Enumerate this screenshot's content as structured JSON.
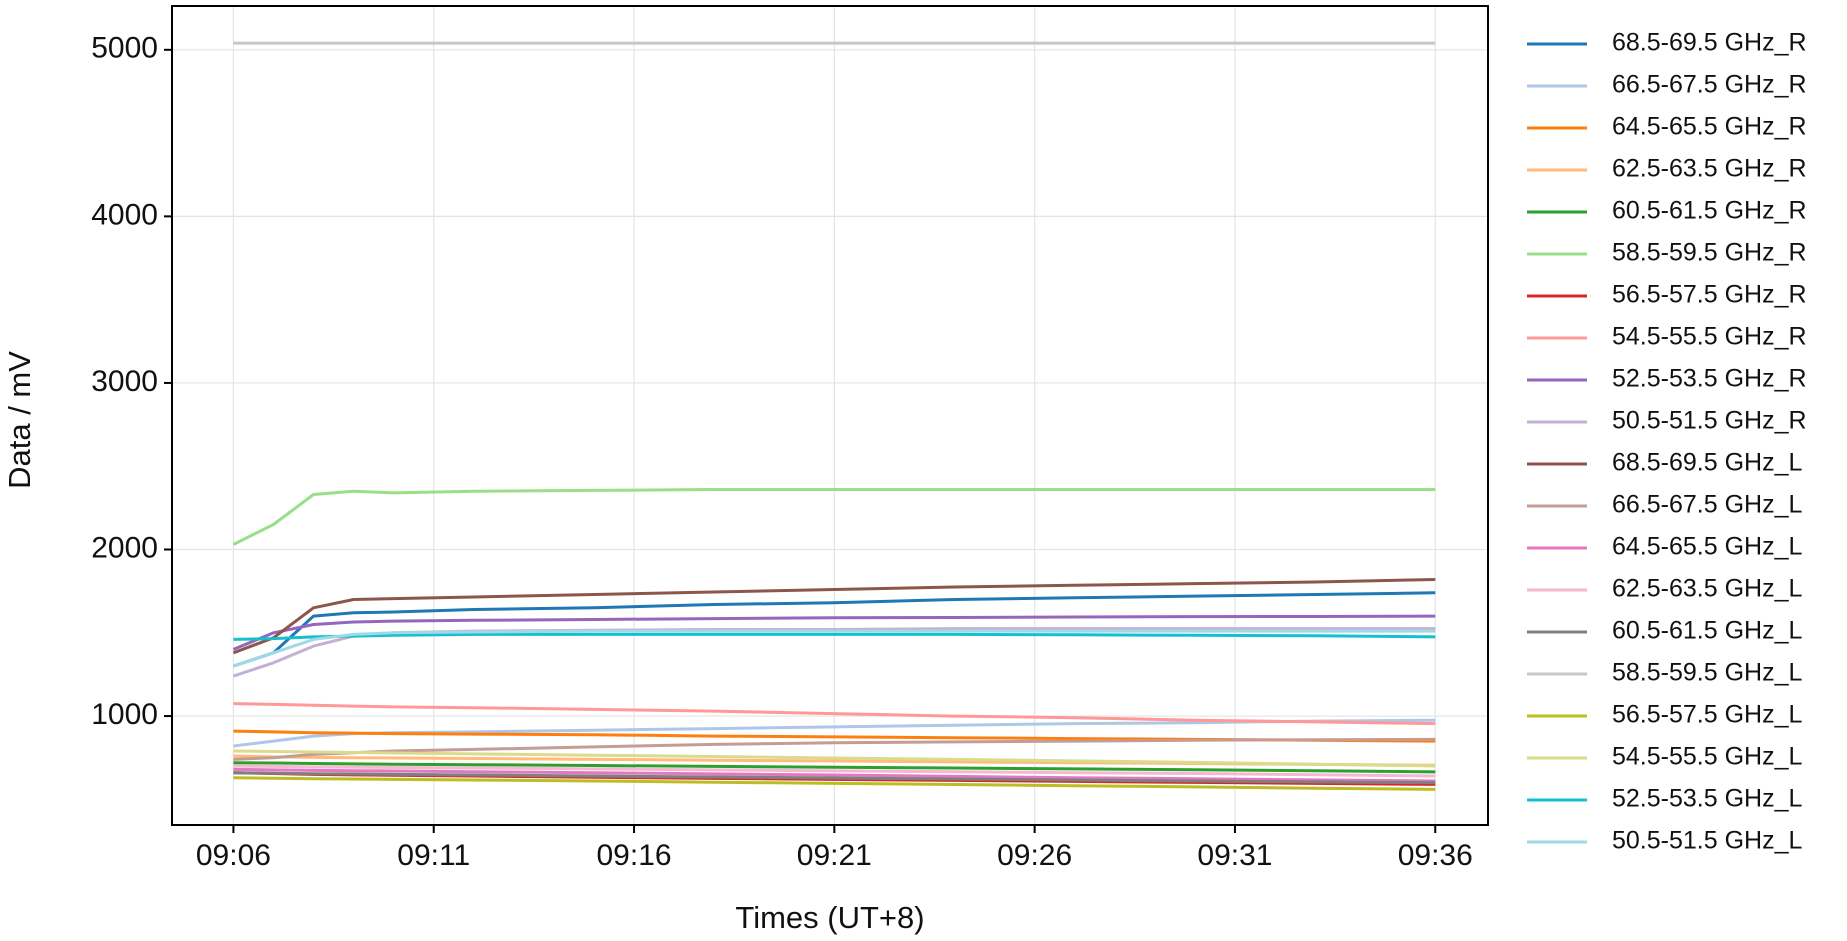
{
  "chart_data": {
    "type": "line",
    "xlabel": "Times (UT+8)",
    "ylabel": "Data / mV",
    "x": [
      "09:06",
      "09:07",
      "09:08",
      "09:09",
      "09:10",
      "09:12",
      "09:15",
      "09:18",
      "09:21",
      "09:24",
      "09:27",
      "09:30",
      "09:33",
      "09:36"
    ],
    "xlim": [
      "09:04:28",
      "09:37:19"
    ],
    "xticks": [
      "09:06",
      "09:11",
      "09:16",
      "09:21",
      "09:26",
      "09:31",
      "09:36"
    ],
    "ylim": [
      346,
      5263
    ],
    "yticks": [
      1000,
      2000,
      3000,
      4000,
      5000
    ],
    "grid": true,
    "legend": "right outside",
    "series": [
      {
        "name": "68.5-69.5 GHz_R",
        "color": "#1f77b4",
        "values": [
          1300,
          1380,
          1600,
          1620,
          1625,
          1640,
          1650,
          1670,
          1680,
          1700,
          1710,
          1720,
          1730,
          1740
        ]
      },
      {
        "name": "66.5-67.5 GHz_R",
        "color": "#aec7e8",
        "values": [
          820,
          850,
          880,
          895,
          900,
          905,
          915,
          925,
          935,
          945,
          955,
          960,
          970,
          975
        ]
      },
      {
        "name": "64.5-65.5 GHz_R",
        "color": "#ff7f0e",
        "values": [
          910,
          905,
          900,
          898,
          895,
          892,
          888,
          880,
          875,
          870,
          865,
          860,
          855,
          850
        ]
      },
      {
        "name": "62.5-63.5 GHz_R",
        "color": "#ffbb78",
        "values": [
          760,
          755,
          752,
          750,
          748,
          745,
          740,
          735,
          730,
          725,
          720,
          715,
          710,
          705
        ]
      },
      {
        "name": "60.5-61.5 GHz_R",
        "color": "#2ca02c",
        "values": [
          720,
          718,
          715,
          713,
          711,
          708,
          703,
          698,
          693,
          688,
          683,
          678,
          672,
          665
        ]
      },
      {
        "name": "58.5-59.5 GHz_R",
        "color": "#98df8a",
        "values": [
          2030,
          2150,
          2330,
          2350,
          2340,
          2350,
          2355,
          2360,
          2360,
          2360,
          2360,
          2360,
          2360,
          2360
        ]
      },
      {
        "name": "56.5-57.5 GHz_R",
        "color": "#d62728",
        "values": [
          660,
          655,
          650,
          647,
          645,
          640,
          633,
          626,
          620,
          614,
          608,
          602,
          596,
          590
        ]
      },
      {
        "name": "54.5-55.5 GHz_R",
        "color": "#ff9896",
        "values": [
          1075,
          1070,
          1065,
          1060,
          1055,
          1050,
          1040,
          1030,
          1015,
          1000,
          990,
          975,
          965,
          955
        ]
      },
      {
        "name": "52.5-53.5 GHz_R",
        "color": "#9467bd",
        "values": [
          1400,
          1500,
          1550,
          1565,
          1570,
          1575,
          1580,
          1585,
          1590,
          1592,
          1595,
          1597,
          1598,
          1600
        ]
      },
      {
        "name": "50.5-51.5 GHz_R",
        "color": "#c5b0d5",
        "values": [
          1240,
          1320,
          1420,
          1480,
          1500,
          1510,
          1515,
          1520,
          1520,
          1525,
          1525,
          1525,
          1525,
          1525
        ]
      },
      {
        "name": "68.5-69.5 GHz_L",
        "color": "#8c564b",
        "values": [
          1380,
          1470,
          1650,
          1700,
          1705,
          1715,
          1730,
          1745,
          1760,
          1775,
          1785,
          1795,
          1805,
          1820
        ]
      },
      {
        "name": "66.5-67.5 GHz_L",
        "color": "#c49c94",
        "values": [
          740,
          750,
          770,
          780,
          790,
          800,
          815,
          830,
          840,
          845,
          850,
          855,
          858,
          860
        ]
      },
      {
        "name": "64.5-65.5 GHz_L",
        "color": "#e377c2",
        "values": [
          680,
          677,
          674,
          672,
          670,
          666,
          660,
          653,
          646,
          638,
          630,
          624,
          617,
          610
        ]
      },
      {
        "name": "62.5-63.5 GHz_L",
        "color": "#f7b6d2",
        "values": [
          700,
          698,
          695,
          693,
          691,
          688,
          683,
          677,
          671,
          666,
          660,
          655,
          648,
          640
        ]
      },
      {
        "name": "60.5-61.5 GHz_L",
        "color": "#7f7f7f",
        "values": [
          660,
          657,
          654,
          652,
          650,
          646,
          640,
          634,
          628,
          622,
          616,
          610,
          605,
          600
        ]
      },
      {
        "name": "58.5-59.5 GHz_L",
        "color": "#c7c7c7",
        "values": [
          5040,
          5040,
          5040,
          5040,
          5040,
          5040,
          5040,
          5040,
          5040,
          5040,
          5040,
          5040,
          5040,
          5040
        ]
      },
      {
        "name": "56.5-57.5 GHz_L",
        "color": "#bcbd22",
        "values": [
          630,
          627,
          624,
          622,
          620,
          616,
          610,
          603,
          596,
          589,
          582,
          575,
          567,
          560
        ]
      },
      {
        "name": "54.5-55.5 GHz_L",
        "color": "#dbdb8d",
        "values": [
          790,
          787,
          784,
          781,
          778,
          773,
          765,
          757,
          748,
          740,
          731,
          722,
          711,
          700
        ]
      },
      {
        "name": "52.5-53.5 GHz_L",
        "color": "#17becf",
        "values": [
          1460,
          1465,
          1475,
          1480,
          1485,
          1490,
          1490,
          1490,
          1490,
          1490,
          1488,
          1485,
          1482,
          1475
        ]
      },
      {
        "name": "50.5-51.5 GHz_L",
        "color": "#9edae5",
        "values": [
          1300,
          1380,
          1460,
          1490,
          1500,
          1505,
          1510,
          1510,
          1510,
          1510,
          1510,
          1510,
          1510,
          1510
        ]
      }
    ]
  }
}
